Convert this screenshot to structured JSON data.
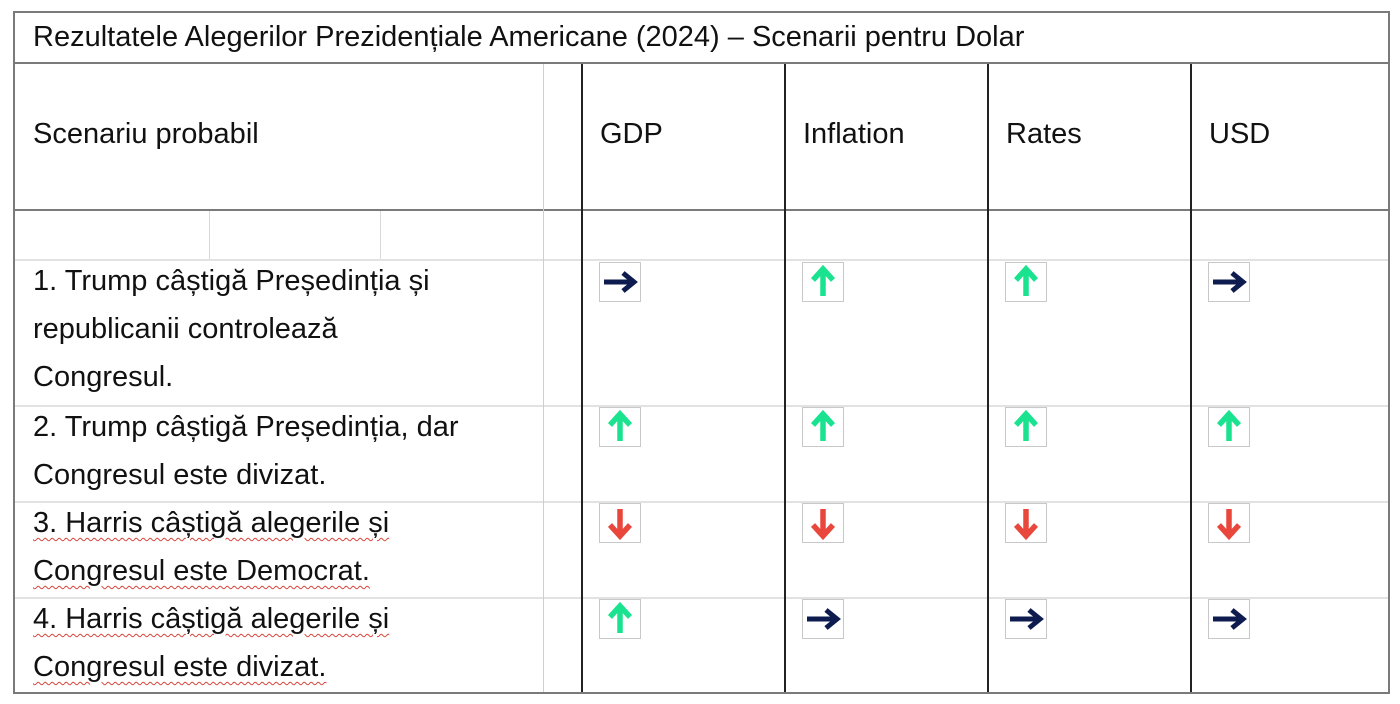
{
  "title": "Rezultatele Alegerilor Prezidențiale Americane (2024) – Scenarii pentru Dolar",
  "header": {
    "scenario_label": "Scenariu probabil",
    "columns": [
      "GDP",
      "Inflation",
      "Rates",
      "USD"
    ]
  },
  "icons": {
    "up": {
      "name": "arrow-up-icon",
      "color": "#19e38f"
    },
    "down": {
      "name": "arrow-down-icon",
      "color": "#e9473b"
    },
    "right": {
      "name": "arrow-right-icon",
      "color": "#0d1b4e"
    }
  },
  "rows": [
    {
      "lines": [
        [
          "1. Trump câștigă Președinția și"
        ],
        [
          "republicanii controlează"
        ],
        [
          "Congresul."
        ]
      ],
      "gdp": "right",
      "inflation": "up",
      "rates": "up",
      "usd": "right"
    },
    {
      "lines": [
        [
          "2. Trump câștigă Președinția, dar"
        ],
        [
          "Congresul este divizat."
        ]
      ],
      "gdp": "up",
      "inflation": "up",
      "rates": "up",
      "usd": "up"
    },
    {
      "lines": [
        [
          "3. Harris câștigă alegerile și"
        ],
        [
          "Congresul este Democrat."
        ]
      ],
      "gdp": "down",
      "inflation": "down",
      "rates": "down",
      "usd": "down"
    },
    {
      "lines": [
        [
          "4. Harris câștigă alegerile și"
        ],
        [
          "Congresul este divizat."
        ]
      ],
      "gdp": "up",
      "inflation": "right",
      "rates": "right",
      "usd": "right"
    }
  ]
}
